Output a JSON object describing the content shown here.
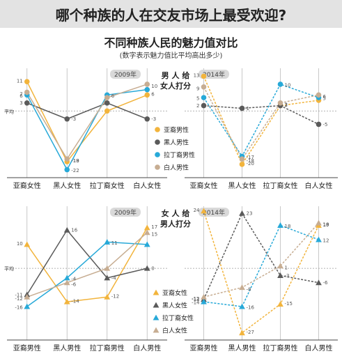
{
  "header": {
    "title": "哪个种族的人在交友市场上最受欢迎?",
    "subtitle": "不同种族人民的魅力值对比",
    "note": "(数字表示魅力值比平均高出多少)"
  },
  "colors": {
    "asian": "#f2b43c",
    "black": "#5a5a5a",
    "latino": "#27a9d8",
    "white": "#c7ad92",
    "grid": "#bbbbbb",
    "axis": "#444444",
    "banner": "#e3e3e3",
    "yearbox": "#d9d9d9"
  },
  "chart_data": [
    {
      "type": "line",
      "group_label": [
        "男 人 给",
        "女人打分"
      ],
      "year": "2009年",
      "categories": [
        "亚裔女性",
        "黑人女性",
        "拉丁裔女性",
        "白人女性"
      ],
      "y_axis_label": "平均",
      "style": "solid",
      "marker": "circle",
      "ylim": [
        -25,
        16
      ],
      "series": [
        {
          "name": "亚裔男性",
          "color_key": "asian",
          "values": [
            11,
            -19,
            0,
            6
          ]
        },
        {
          "name": "黑人男性",
          "color_key": "black",
          "values": [
            3,
            -3,
            3,
            -3
          ]
        },
        {
          "name": "拉丁裔男性",
          "color_key": "latino",
          "values": [
            6,
            -22,
            6,
            8
          ]
        },
        {
          "name": "白人男性",
          "color_key": "white",
          "values": [
            7,
            -18,
            5,
            10
          ]
        }
      ],
      "labels": [
        [
          "11",
          "-19",
          "",
          "6"
        ],
        [
          "3",
          "-3",
          "",
          "-3"
        ],
        [
          "6",
          "-22",
          "6",
          ""
        ],
        [
          "7",
          "-18",
          "",
          "10"
        ]
      ]
    },
    {
      "type": "line",
      "year": "2014年",
      "categories": [
        "亚裔女性",
        "黑人女性",
        "拉丁裔女性",
        "白人女性"
      ],
      "style": "dashed",
      "marker": "circle",
      "ylim": [
        -25,
        16
      ],
      "series": [
        {
          "name": "亚裔男性",
          "color_key": "asian",
          "values": [
            13,
            -20,
            2,
            4
          ]
        },
        {
          "name": "黑人男性",
          "color_key": "black",
          "values": [
            2,
            1,
            2,
            -5
          ]
        },
        {
          "name": "拉丁裔男性",
          "color_key": "latino",
          "values": [
            5,
            -17,
            10,
            5
          ]
        },
        {
          "name": "白人男性",
          "color_key": "white",
          "values": [
            9,
            -18,
            3,
            6
          ]
        }
      ],
      "labels": [
        [
          "13",
          "-20",
          "2",
          ""
        ],
        [
          "2",
          "1",
          "",
          "-5"
        ],
        [
          "5",
          "-17",
          "10",
          "5"
        ],
        [
          "9",
          "-18",
          "3",
          "6"
        ]
      ]
    },
    {
      "type": "line",
      "group_label": [
        "女 人 给",
        "男人打分"
      ],
      "year": "2009年",
      "categories": [
        "亚裔男性",
        "黑人男性",
        "拉丁裔男性",
        "白人男性"
      ],
      "y_axis_label": "平均",
      "style": "solid",
      "marker": "triangle",
      "ylim": [
        -30,
        26
      ],
      "series": [
        {
          "name": "亚裔女性",
          "color_key": "asian",
          "values": [
            10,
            -14,
            -12,
            17
          ]
        },
        {
          "name": "黑人女性",
          "color_key": "black",
          "values": [
            -11,
            16,
            -4,
            0
          ]
        },
        {
          "name": "拉丁裔女性",
          "color_key": "latino",
          "values": [
            -16,
            -4,
            11,
            10
          ]
        },
        {
          "name": "白人女性",
          "color_key": "white",
          "values": [
            -12,
            -6,
            0,
            15
          ]
        }
      ],
      "labels": [
        [
          "10",
          "-14",
          "-12",
          "17"
        ],
        [
          "-11",
          "16",
          "-4",
          "0"
        ],
        [
          "-16",
          "-4",
          "11",
          ""
        ],
        [
          "-12",
          "-6",
          "",
          "15"
        ]
      ]
    },
    {
      "type": "line",
      "year": "2014年",
      "categories": [
        "亚裔男性",
        "黑人男性",
        "拉丁裔男性",
        "白人男性"
      ],
      "style": "dashed",
      "marker": "triangle",
      "ylim": [
        -30,
        26
      ],
      "series": [
        {
          "name": "亚裔女性",
          "color_key": "asian",
          "values": [
            24,
            -27,
            -15,
            18
          ]
        },
        {
          "name": "黑人女性",
          "color_key": "black",
          "values": [
            -13,
            23,
            -3,
            -6
          ]
        },
        {
          "name": "拉丁裔女性",
          "color_key": "latino",
          "values": [
            -14,
            -16,
            18,
            12
          ]
        },
        {
          "name": "白人女性",
          "color_key": "white",
          "values": [
            -12,
            -8,
            1,
            19
          ]
        }
      ],
      "labels": [
        [
          "24",
          "-27",
          "-15",
          "18"
        ],
        [
          "-13",
          "23",
          "-3",
          "-6"
        ],
        [
          "-14",
          "-16",
          "18",
          "12"
        ],
        [
          "-12",
          "-8",
          "1",
          "19"
        ]
      ]
    }
  ],
  "legends": {
    "top": [
      "亚裔男性",
      "黑人男性",
      "拉丁裔男性",
      "白人男性"
    ],
    "bottom": [
      "亚裔女性",
      "黑人女性",
      "拉丁裔女性",
      "白人女性"
    ]
  }
}
